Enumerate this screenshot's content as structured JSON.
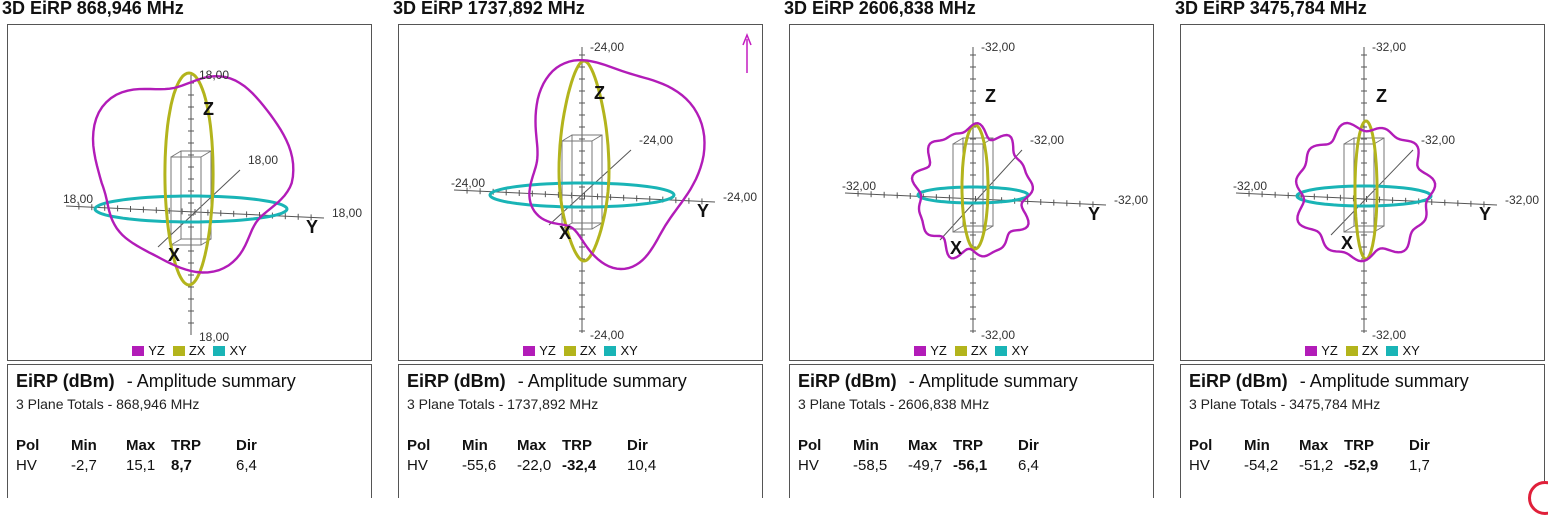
{
  "colors": {
    "YZ": "#b21cb8",
    "ZX": "#b3b41c",
    "XY": "#19b4b6"
  },
  "panels": [
    {
      "title": "3D EiRP 868,946 MHz",
      "axis_labels": {
        "z_top": "18,00",
        "z_bottom": "18,00",
        "y_right": "18,00",
        "x_left": "18,00",
        "diag": "18,00"
      },
      "summary": {
        "unit": "EiRP (dBm)",
        "heading": "- Amplitude summary",
        "subtitle": "3 Plane Totals - 868,946 MHz",
        "headers": [
          "Pol",
          "Min",
          "Max",
          "TRP",
          "Dir"
        ],
        "row": [
          "HV",
          "-2,7",
          "15,1",
          "8,7",
          "6,4"
        ]
      }
    },
    {
      "title": "3D EiRP 1737,892 MHz",
      "axis_labels": {
        "z_top": "-24,00",
        "z_bottom": "-24,00",
        "y_right": "-24,00",
        "x_left": "-24,00",
        "diag": "-24,00"
      },
      "summary": {
        "unit": "EiRP (dBm)",
        "heading": "- Amplitude summary",
        "subtitle": "3 Plane Totals - 1737,892 MHz",
        "headers": [
          "Pol",
          "Min",
          "Max",
          "TRP",
          "Dir"
        ],
        "row": [
          "HV",
          "-55,6",
          "-22,0",
          "-32,4",
          "10,4"
        ]
      }
    },
    {
      "title": "3D EiRP 2606,838 MHz",
      "axis_labels": {
        "z_top": "-32,00",
        "z_bottom": "-32,00",
        "y_right": "-32,00",
        "x_left": "-32,00",
        "diag": "-32,00"
      },
      "summary": {
        "unit": "EiRP (dBm)",
        "heading": "- Amplitude summary",
        "subtitle": "3 Plane Totals - 2606,838 MHz",
        "headers": [
          "Pol",
          "Min",
          "Max",
          "TRP",
          "Dir"
        ],
        "row": [
          "HV",
          "-58,5",
          "-49,7",
          "-56,1",
          "6,4"
        ]
      }
    },
    {
      "title": "3D EiRP 3475,784 MHz",
      "axis_labels": {
        "z_top": "-32,00",
        "z_bottom": "-32,00",
        "y_right": "-32,00",
        "x_left": "-32,00",
        "diag": "-32,00"
      },
      "summary": {
        "unit": "EiRP (dBm)",
        "heading": "- Amplitude summary",
        "subtitle": "3 Plane Totals - 3475,784 MHz",
        "headers": [
          "Pol",
          "Min",
          "Max",
          "TRP",
          "Dir"
        ],
        "row": [
          "HV",
          "-54,2",
          "-51,2",
          "-52,9",
          "1,7"
        ]
      }
    }
  ],
  "legend": [
    "YZ",
    "ZX",
    "XY"
  ],
  "axis_letters": {
    "z": "Z",
    "y": "Y",
    "x": "X"
  },
  "chart_data": [
    {
      "type": "3d-polar-cuts",
      "title": "3D EiRP 868,946 MHz",
      "unit": "dBm",
      "axis_max": 18.0,
      "series": [
        {
          "name": "YZ"
        },
        {
          "name": "ZX"
        },
        {
          "name": "XY"
        }
      ]
    },
    {
      "type": "3d-polar-cuts",
      "title": "3D EiRP 1737,892 MHz",
      "unit": "dBm",
      "axis_max": -24.0,
      "series": [
        {
          "name": "YZ"
        },
        {
          "name": "ZX"
        },
        {
          "name": "XY"
        }
      ]
    },
    {
      "type": "3d-polar-cuts",
      "title": "3D EiRP 2606,838 MHz",
      "unit": "dBm",
      "axis_max": -32.0,
      "series": [
        {
          "name": "YZ"
        },
        {
          "name": "ZX"
        },
        {
          "name": "XY"
        }
      ]
    },
    {
      "type": "3d-polar-cuts",
      "title": "3D EiRP 3475,784 MHz",
      "unit": "dBm",
      "axis_max": -32.0,
      "series": [
        {
          "name": "YZ"
        },
        {
          "name": "ZX"
        },
        {
          "name": "XY"
        }
      ]
    }
  ]
}
